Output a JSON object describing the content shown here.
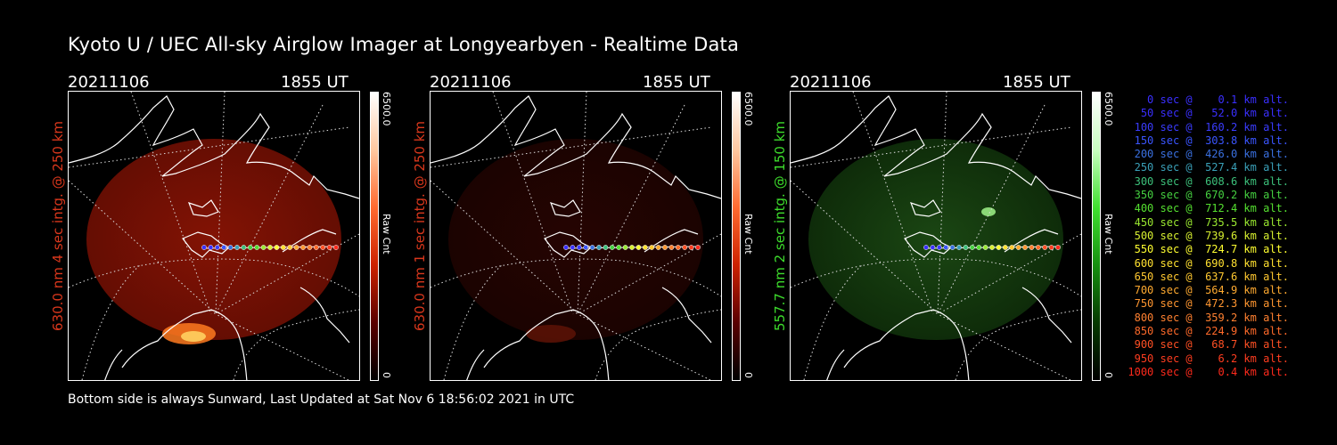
{
  "title": "Kyoto U / UEC All-sky Airglow Imager at Longyearbyen - Realtime Data",
  "panels": [
    {
      "date": "20211106",
      "time": "1855 UT",
      "ylabel": "630.0 nm 4 sec intg. @ 250 km",
      "color": "#d9371c",
      "scale": "red"
    },
    {
      "date": "20211106",
      "time": "1855 UT",
      "ylabel": "630.0 nm 1 sec intg. @ 250 km",
      "color": "#d9371c",
      "scale": "darkred"
    },
    {
      "date": "20211106",
      "time": "1855 UT",
      "ylabel": "557.7 nm 2 sec intg. @ 150 km",
      "color": "#3ddc2c",
      "scale": "green"
    }
  ],
  "colorbar": {
    "max": "6500.0",
    "unit": "Raw Cnt",
    "min": "0"
  },
  "footer": "Bottom side is always Sunward, Last Updated at Sat Nov  6 18:56:02 2021 in UTC",
  "legend": [
    {
      "text": "   0 sec @    0.1 km alt.",
      "color": "#3a2fff"
    },
    {
      "text": "  50 sec @   52.0 km alt.",
      "color": "#3a2fff"
    },
    {
      "text": " 100 sec @  160.2 km alt.",
      "color": "#3a3cff"
    },
    {
      "text": " 150 sec @  303.8 km alt.",
      "color": "#3a55ff"
    },
    {
      "text": " 200 sec @  426.0 km alt.",
      "color": "#3a70e0"
    },
    {
      "text": " 250 sec @  527.4 km alt.",
      "color": "#3aa0b8"
    },
    {
      "text": " 300 sec @  608.6 km alt.",
      "color": "#3cc07a"
    },
    {
      "text": " 350 sec @  670.2 km alt.",
      "color": "#45d040"
    },
    {
      "text": " 400 sec @  712.4 km alt.",
      "color": "#55e030"
    },
    {
      "text": " 450 sec @  735.5 km alt.",
      "color": "#9ae830"
    },
    {
      "text": " 500 sec @  739.6 km alt.",
      "color": "#d8f030"
    },
    {
      "text": " 550 sec @  724.7 km alt.",
      "color": "#ffff30"
    },
    {
      "text": " 600 sec @  690.8 km alt.",
      "color": "#ffe030"
    },
    {
      "text": " 650 sec @  637.6 km alt.",
      "color": "#ffc830"
    },
    {
      "text": " 700 sec @  564.9 km alt.",
      "color": "#ffaa30"
    },
    {
      "text": " 750 sec @  472.3 km alt.",
      "color": "#ff9630"
    },
    {
      "text": " 800 sec @  359.2 km alt.",
      "color": "#ff8030"
    },
    {
      "text": " 850 sec @  224.9 km alt.",
      "color": "#ff6a2a"
    },
    {
      "text": " 900 sec @   68.7 km alt.",
      "color": "#ff5024"
    },
    {
      "text": " 950 sec @    6.2 km alt.",
      "color": "#ff3d20"
    },
    {
      "text": "1000 sec @    0.4 km alt.",
      "color": "#ff2a1c"
    }
  ]
}
